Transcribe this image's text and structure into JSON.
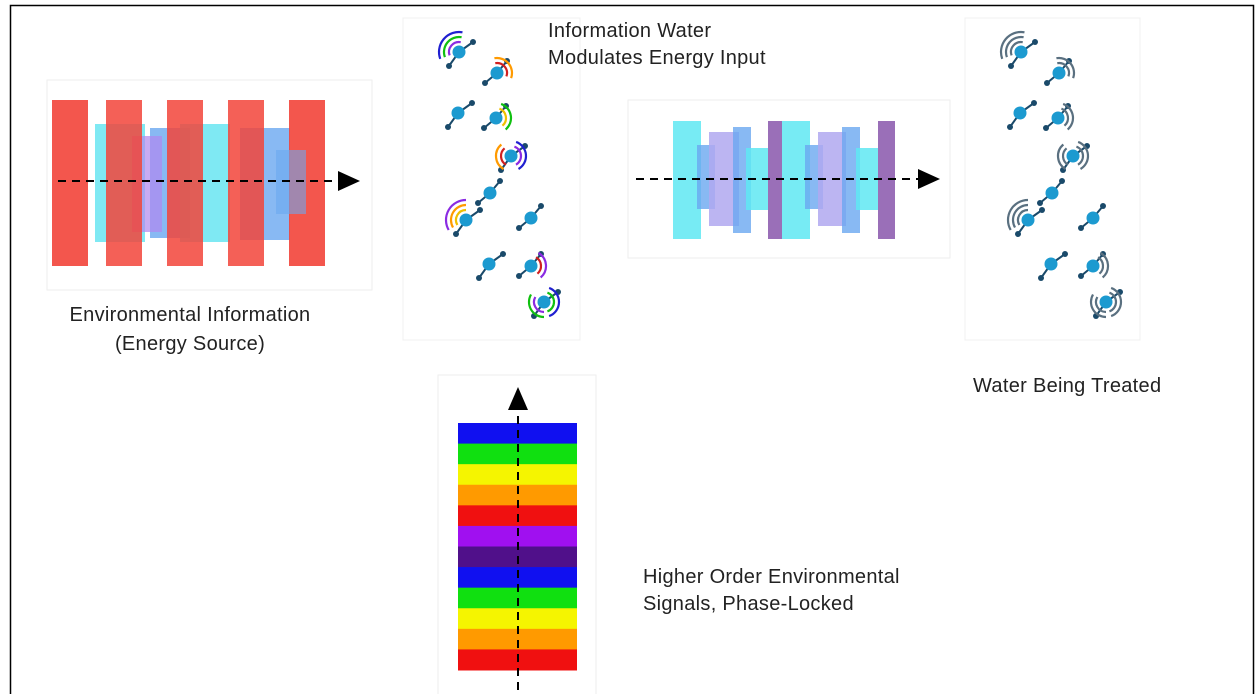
{
  "labels": [
    {
      "lines": [
        "Information Water",
        "Modulates Energy Input"
      ]
    },
    {
      "lines": [
        "Environmental Information",
        "(Energy Source)"
      ]
    },
    {
      "lines": [
        "Water Being Treated"
      ]
    },
    {
      "lines": [
        "Higher Order Environmental",
        "Signals, Phase-Locked"
      ]
    }
  ]
}
